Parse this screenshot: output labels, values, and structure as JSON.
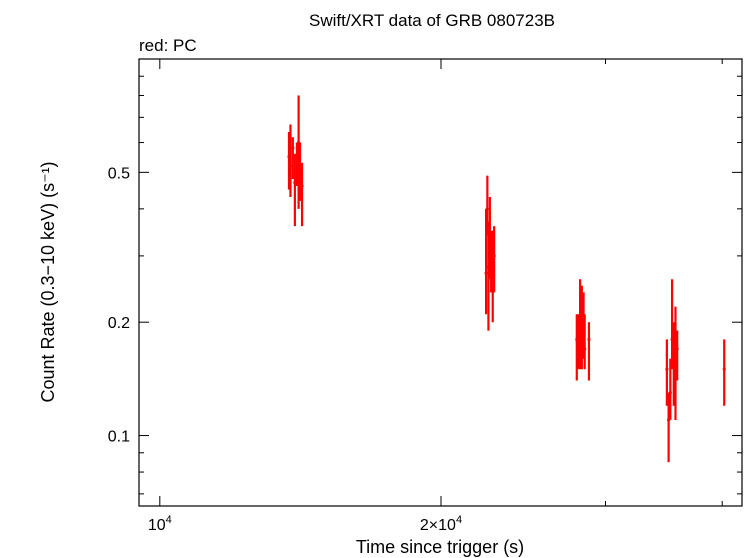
{
  "chart_data": {
    "type": "scatter",
    "title": "Swift/XRT data of GRB 080723B",
    "subtitle": "red: PC",
    "xlabel": "Time since trigger (s)",
    "ylabel": "Count Rate (0.3−10 keV) (s⁻¹)",
    "x_scale": "log",
    "y_scale": "log",
    "xlim": [
      9500,
      42000
    ],
    "ylim": [
      0.065,
      1.0
    ],
    "x_ticks": [
      {
        "value": 10000,
        "base": "10",
        "exp": "4"
      },
      {
        "value": 20000,
        "base": "2×10",
        "exp": "4"
      }
    ],
    "y_ticks": [
      {
        "value": 0.5,
        "label": "0.5"
      },
      {
        "value": 0.2,
        "label": "0.2"
      },
      {
        "value": 0.1,
        "label": "0.1"
      }
    ],
    "grid": false,
    "legend": "none",
    "series": [
      {
        "color": "#ff0000",
        "points": [
          {
            "x": 13750,
            "y": 0.55,
            "ylo": 0.45,
            "yhi": 0.64
          },
          {
            "x": 13800,
            "y": 0.52,
            "ylo": 0.43,
            "yhi": 0.67
          },
          {
            "x": 13880,
            "y": 0.58,
            "ylo": 0.48,
            "yhi": 0.62
          },
          {
            "x": 13950,
            "y": 0.47,
            "ylo": 0.36,
            "yhi": 0.56
          },
          {
            "x": 14020,
            "y": 0.55,
            "ylo": 0.46,
            "yhi": 0.6
          },
          {
            "x": 14080,
            "y": 0.6,
            "ylo": 0.4,
            "yhi": 0.8
          },
          {
            "x": 14130,
            "y": 0.52,
            "ylo": 0.42,
            "yhi": 0.6
          },
          {
            "x": 14200,
            "y": 0.46,
            "ylo": 0.36,
            "yhi": 0.53
          },
          {
            "x": 22350,
            "y": 0.27,
            "ylo": 0.21,
            "yhi": 0.4
          },
          {
            "x": 22420,
            "y": 0.4,
            "ylo": 0.34,
            "yhi": 0.49
          },
          {
            "x": 22480,
            "y": 0.28,
            "ylo": 0.19,
            "yhi": 0.37
          },
          {
            "x": 22560,
            "y": 0.32,
            "ylo": 0.26,
            "yhi": 0.43
          },
          {
            "x": 22630,
            "y": 0.29,
            "ylo": 0.24,
            "yhi": 0.35
          },
          {
            "x": 22720,
            "y": 0.27,
            "ylo": 0.2,
            "yhi": 0.35
          },
          {
            "x": 22800,
            "y": 0.3,
            "ylo": 0.24,
            "yhi": 0.36
          },
          {
            "x": 27950,
            "y": 0.18,
            "ylo": 0.14,
            "yhi": 0.21
          },
          {
            "x": 28050,
            "y": 0.17,
            "ylo": 0.15,
            "yhi": 0.21
          },
          {
            "x": 28180,
            "y": 0.19,
            "ylo": 0.15,
            "yhi": 0.26
          },
          {
            "x": 28300,
            "y": 0.18,
            "ylo": 0.15,
            "yhi": 0.25
          },
          {
            "x": 28420,
            "y": 0.19,
            "ylo": 0.16,
            "yhi": 0.24
          },
          {
            "x": 28500,
            "y": 0.17,
            "ylo": 0.15,
            "yhi": 0.21
          },
          {
            "x": 28800,
            "y": 0.18,
            "ylo": 0.14,
            "yhi": 0.2
          },
          {
            "x": 34900,
            "y": 0.15,
            "ylo": 0.12,
            "yhi": 0.18
          },
          {
            "x": 35050,
            "y": 0.11,
            "ylo": 0.085,
            "yhi": 0.13
          },
          {
            "x": 35200,
            "y": 0.13,
            "ylo": 0.11,
            "yhi": 0.16
          },
          {
            "x": 35350,
            "y": 0.18,
            "ylo": 0.15,
            "yhi": 0.26
          },
          {
            "x": 35500,
            "y": 0.16,
            "ylo": 0.12,
            "yhi": 0.2
          },
          {
            "x": 35650,
            "y": 0.17,
            "ylo": 0.11,
            "yhi": 0.22
          },
          {
            "x": 35800,
            "y": 0.17,
            "ylo": 0.14,
            "yhi": 0.19
          },
          {
            "x": 40200,
            "y": 0.15,
            "ylo": 0.12,
            "yhi": 0.18
          }
        ]
      }
    ]
  }
}
